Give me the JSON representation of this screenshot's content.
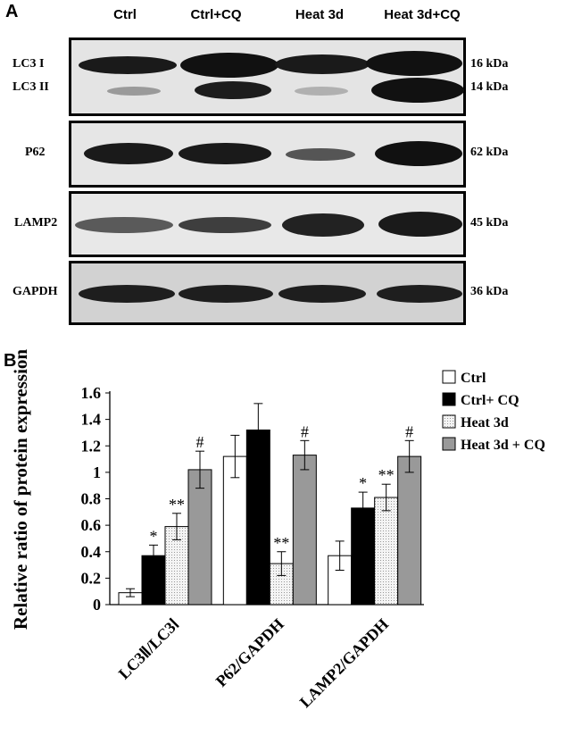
{
  "panelA": {
    "letter": "A",
    "lanes": [
      "Ctrl",
      "Ctrl+CQ",
      "Heat 3d",
      "Heat 3d+CQ"
    ],
    "blots": [
      {
        "labels": [
          "LC3 I",
          "LC3 II"
        ],
        "kda": [
          "16 kDa",
          "14 kDa"
        ]
      },
      {
        "labels": [
          "P62"
        ],
        "kda": [
          "62 kDa"
        ]
      },
      {
        "labels": [
          "LAMP2"
        ],
        "kda": [
          "45 kDa"
        ]
      },
      {
        "labels": [
          "GAPDH"
        ],
        "kda": [
          "36 kDa"
        ]
      }
    ]
  },
  "panelB": {
    "letter": "B"
  },
  "chart_data": {
    "type": "bar",
    "title": "",
    "xlabel": "",
    "ylabel": "Relative ratio of protein expression",
    "ylim": [
      0,
      1.6
    ],
    "yticks": [
      "0",
      "0.2",
      "0.4",
      "0.6",
      "0.8",
      "1",
      "1.2",
      "1.4",
      "1.6"
    ],
    "categories": [
      "LC3Ⅱ/LC3Ⅰ",
      "P62/GAPDH",
      "LAMP2/GAPDH"
    ],
    "legend_position": "top-right",
    "series": [
      {
        "name": "Ctrl",
        "color": "#ffffff",
        "values": [
          0.09,
          1.12,
          0.37
        ],
        "errors": [
          0.03,
          0.16,
          0.11
        ],
        "marks": [
          "",
          "",
          ""
        ]
      },
      {
        "name": "Ctrl+ CQ",
        "color": "#000000",
        "values": [
          0.37,
          1.32,
          0.73
        ],
        "errors": [
          0.08,
          0.2,
          0.12
        ],
        "marks": [
          "*",
          "",
          "*"
        ]
      },
      {
        "name": "Heat 3d",
        "color": "#eeeeee",
        "values": [
          0.59,
          0.31,
          0.81
        ],
        "errors": [
          0.1,
          0.09,
          0.1
        ],
        "marks": [
          "**",
          "**",
          "**"
        ]
      },
      {
        "name": "Heat 3d + CQ",
        "color": "#999999",
        "values": [
          1.02,
          1.13,
          1.12
        ],
        "errors": [
          0.14,
          0.11,
          0.12
        ],
        "marks": [
          "#",
          "#",
          "#"
        ]
      }
    ]
  }
}
